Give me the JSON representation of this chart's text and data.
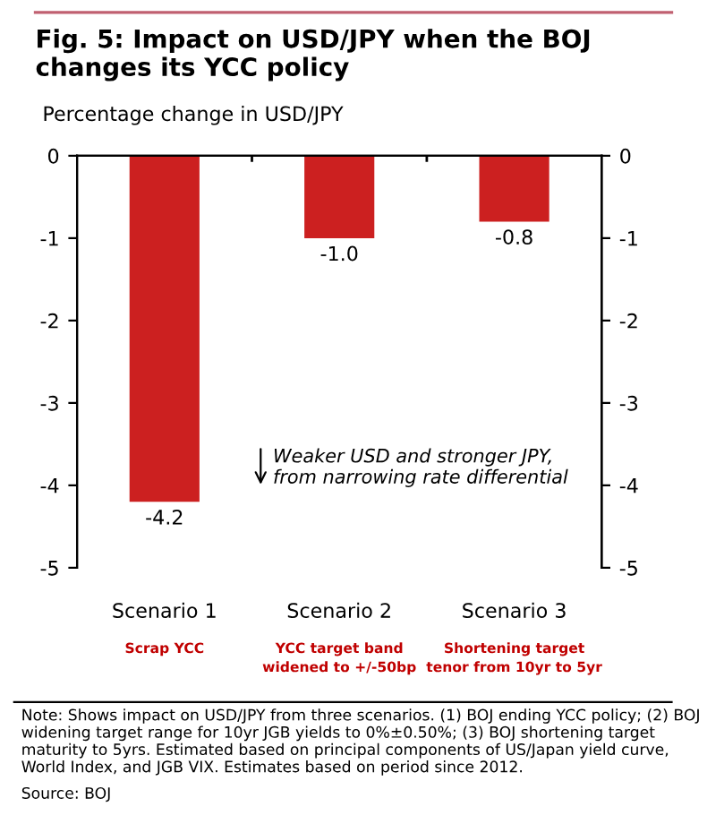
{
  "chart_data": {
    "type": "bar",
    "title": "Fig. 5: Impact on USD/JPY when the BOJ changes its YCC policy",
    "ylabel": "Percentage change in USD/JPY",
    "categories": [
      "Scenario 1",
      "Scenario 2",
      "Scenario 3"
    ],
    "values": [
      -4.2,
      -1.0,
      -0.8
    ],
    "value_labels": [
      "-4.2",
      "-1.0",
      "-0.8"
    ],
    "color": "#cc2020",
    "ylim": [
      -5,
      0
    ],
    "yticks": [
      0,
      -1,
      -2,
      -3,
      -4,
      -5
    ],
    "y2lim": [
      -5,
      0
    ],
    "y2ticks": [
      0,
      -1,
      -2,
      -3,
      -4,
      -5
    ],
    "grid": false,
    "annotations": [
      "Weaker USD and stronger JPY,\nfrom narrowing rate differential",
      "Scrap YCC",
      "YCC target band\nwidened to +/-50bp",
      "Shortening target\ntenor from 10yr to 5yr",
      "Note: Shows impact on USD/JPY from three scenarios. (1) BOJ ending YCC policy; (2) BOJ widening target range for 10yr JGB yields to 0%±0.50%; (3) BOJ shortening target maturity to 5yrs. Estimated based on principal components of US/Japan yield curve, World Index, and JGB VIX. Estimates based on period since 2012.",
      "Source: BOJ"
    ]
  }
}
